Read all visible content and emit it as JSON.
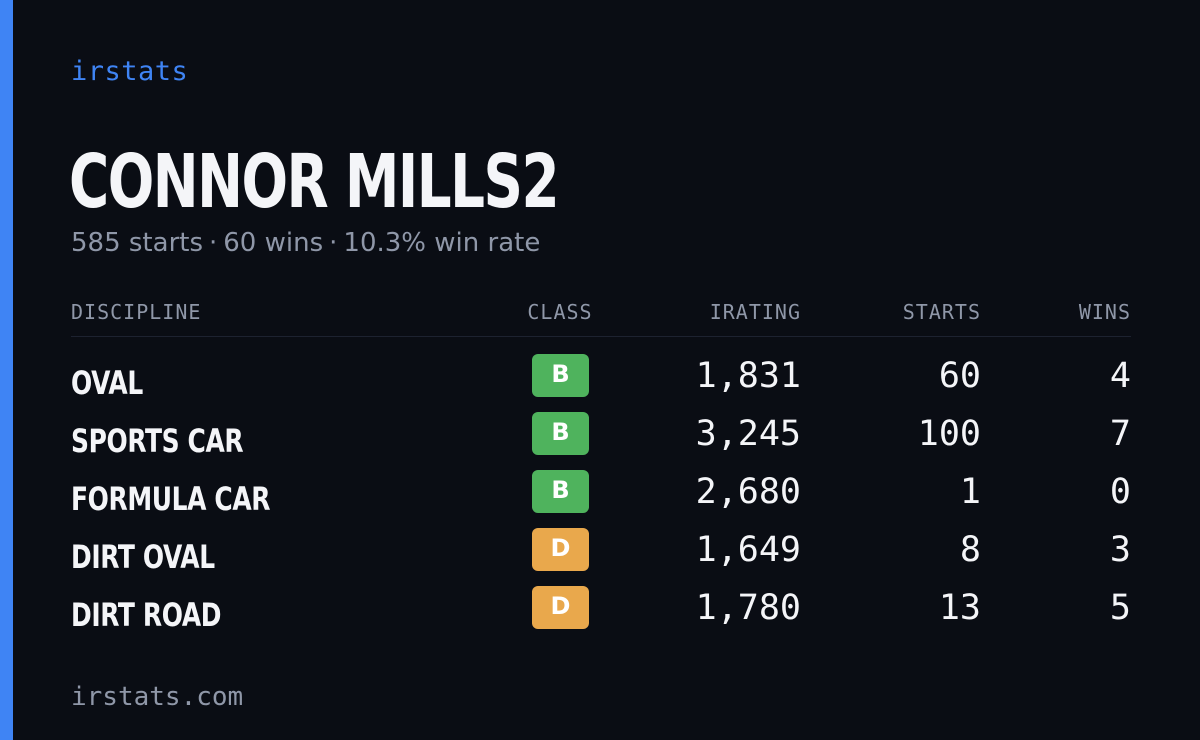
{
  "brand": "irstats",
  "driver": {
    "name": "CONNOR MILLS2",
    "starts": "585 starts",
    "wins": "60 wins",
    "win_rate": "10.3% win rate",
    "separator": "·"
  },
  "table": {
    "headers": {
      "discipline": "DISCIPLINE",
      "class": "CLASS",
      "irating": "IRATING",
      "starts": "STARTS",
      "wins": "WINS"
    },
    "rows": [
      {
        "discipline": "OVAL",
        "class": "B",
        "irating": "1,831",
        "starts": "60",
        "wins": "4"
      },
      {
        "discipline": "SPORTS CAR",
        "class": "B",
        "irating": "3,245",
        "starts": "100",
        "wins": "7"
      },
      {
        "discipline": "FORMULA CAR",
        "class": "B",
        "irating": "2,680",
        "starts": "1",
        "wins": "0"
      },
      {
        "discipline": "DIRT OVAL",
        "class": "D",
        "irating": "1,649",
        "starts": "8",
        "wins": "3"
      },
      {
        "discipline": "DIRT ROAD",
        "class": "D",
        "irating": "1,780",
        "starts": "13",
        "wins": "5"
      }
    ]
  },
  "class_colors": {
    "B": "#4fb35d",
    "D": "#e9a84c"
  },
  "accent_color": "#3f84f4",
  "footer": "irstats.com"
}
